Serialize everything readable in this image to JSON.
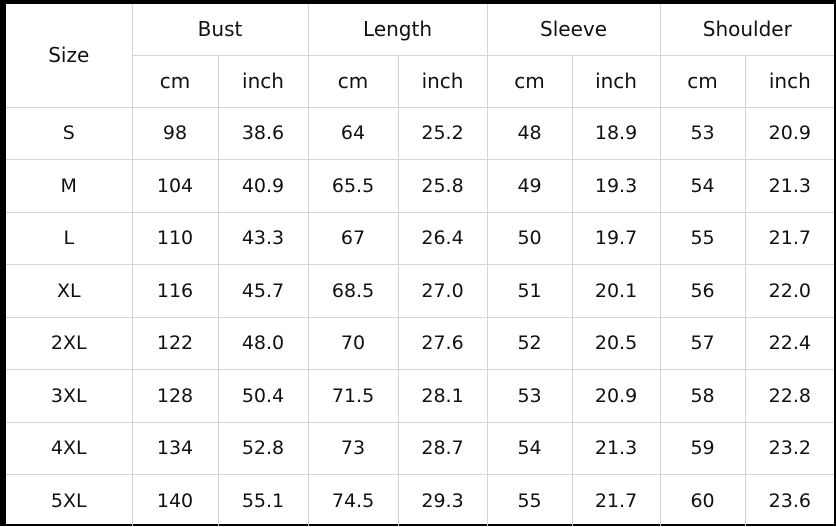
{
  "table": {
    "size_header": "Size",
    "groups": [
      "Bust",
      "Length",
      "Sleeve",
      "Shoulder"
    ],
    "units": [
      "cm",
      "inch"
    ],
    "rows": [
      [
        "S",
        "98",
        "38.6",
        "64",
        "25.2",
        "48",
        "18.9",
        "53",
        "20.9"
      ],
      [
        "M",
        "104",
        "40.9",
        "65.5",
        "25.8",
        "49",
        "19.3",
        "54",
        "21.3"
      ],
      [
        "L",
        "110",
        "43.3",
        "67",
        "26.4",
        "50",
        "19.7",
        "55",
        "21.7"
      ],
      [
        "XL",
        "116",
        "45.7",
        "68.5",
        "27.0",
        "51",
        "20.1",
        "56",
        "22.0"
      ],
      [
        "2XL",
        "122",
        "48.0",
        "70",
        "27.6",
        "52",
        "20.5",
        "57",
        "22.4"
      ],
      [
        "3XL",
        "128",
        "50.4",
        "71.5",
        "28.1",
        "53",
        "20.9",
        "58",
        "22.8"
      ],
      [
        "4XL",
        "134",
        "52.8",
        "73",
        "28.7",
        "54",
        "21.3",
        "59",
        "23.2"
      ],
      [
        "5XL",
        "140",
        "55.1",
        "74.5",
        "29.3",
        "55",
        "21.7",
        "60",
        "23.6"
      ]
    ]
  }
}
